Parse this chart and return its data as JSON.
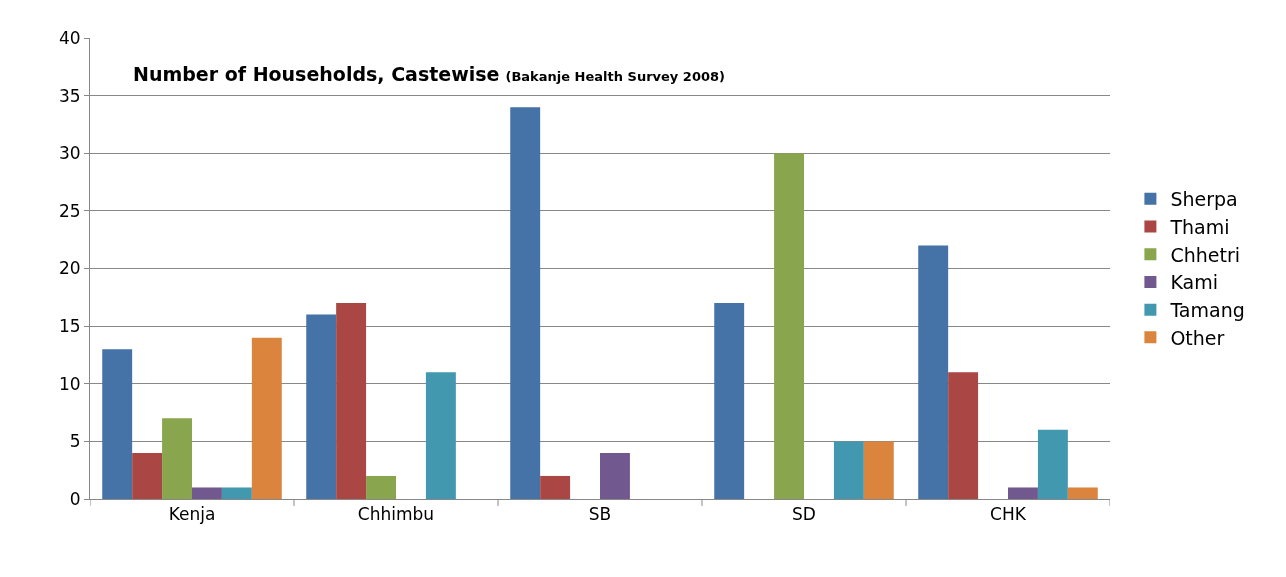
{
  "chart_data": {
    "type": "bar",
    "title": "Number of Households, Castewise",
    "subtitle": "(Bakanje Health Survey 2008)",
    "categories": [
      "Kenja",
      "Chhimbu",
      "SB",
      "SD",
      "CHK"
    ],
    "series": [
      {
        "name": "Sherpa",
        "color": "#4572a7",
        "values": [
          13,
          16,
          34,
          17,
          22
        ]
      },
      {
        "name": "Thami",
        "color": "#aa4643",
        "values": [
          4,
          17,
          2,
          null,
          11
        ]
      },
      {
        "name": "Chhetri",
        "color": "#89a54e",
        "values": [
          7,
          2,
          null,
          30,
          null
        ]
      },
      {
        "name": "Kami",
        "color": "#71588f",
        "values": [
          1,
          null,
          4,
          null,
          1
        ]
      },
      {
        "name": "Tamang",
        "color": "#4198af",
        "values": [
          1,
          11,
          null,
          5,
          6
        ]
      },
      {
        "name": "Other",
        "color": "#db843d",
        "values": [
          14,
          null,
          null,
          5,
          1
        ]
      }
    ],
    "ylim": [
      0,
      40
    ],
    "yticks": [
      0,
      5,
      10,
      15,
      20,
      25,
      30,
      35,
      40
    ],
    "grid": "y",
    "legend": "right"
  }
}
